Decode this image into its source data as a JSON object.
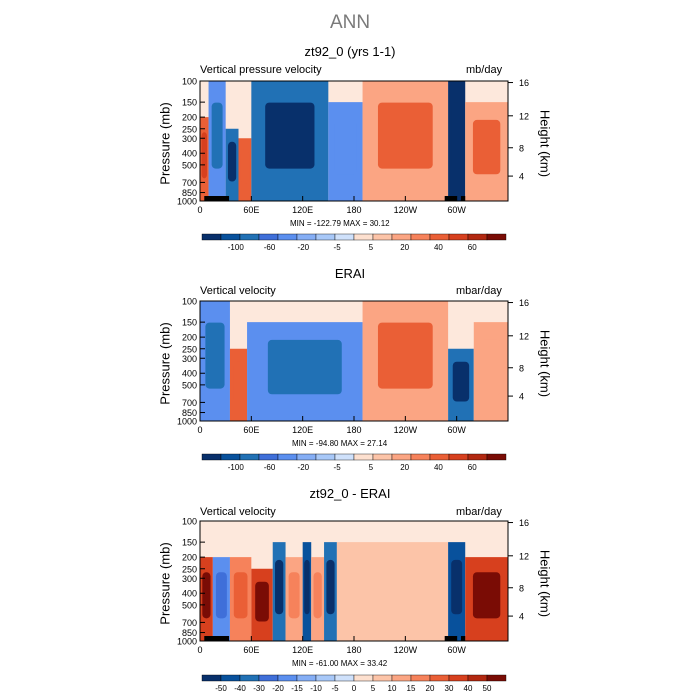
{
  "suptitle": "ANN",
  "colors": {
    "cool": [
      "#08306b",
      "#08519c",
      "#2171b5",
      "#3f6fd9",
      "#5b8fef",
      "#85aef5",
      "#a8c8f8",
      "#cfe1fb"
    ],
    "warm": [
      "#fde0cf",
      "#fcc4a8",
      "#fba583",
      "#f6825b",
      "#ea5f36",
      "#d7401e",
      "#b22810",
      "#7a0c05"
    ],
    "land": "#000000"
  },
  "y_ticks": [
    "100",
    "150",
    "200",
    "250",
    "300",
    "400",
    "500",
    "700",
    "850",
    "1000"
  ],
  "height_ticks": [
    "16",
    "12",
    "8",
    "4"
  ],
  "x_ticks": [
    "0",
    "60E",
    "120E",
    "180",
    "120W",
    "60W"
  ],
  "panels": [
    {
      "title": "zt92_0 (yrs 1-1)",
      "left_label": "Vertical pressure velocity",
      "units": "mb/day",
      "ylabel": "Pressure (mb)",
      "ylabel_right": "Height (km)",
      "stats": "MIN = -122.79   MAX = 30.12",
      "cb_labels": [
        "-100",
        "-60",
        "-20",
        "-5",
        "5",
        "20",
        "40",
        "60"
      ]
    },
    {
      "title": "ERAI",
      "left_label": "Vertical velocity",
      "units": "mbar/day",
      "ylabel": "Pressure (mb)",
      "ylabel_right": "Height (km)",
      "stats": "MIN = -94.80   MAX = 27.14",
      "cb_labels": [
        "-100",
        "-60",
        "-20",
        "-5",
        "5",
        "20",
        "40",
        "60"
      ]
    },
    {
      "title": "zt92_0 - ERAI",
      "left_label": "Vertical velocity",
      "units": "mbar/day",
      "ylabel": "Pressure (mb)",
      "ylabel_right": "Height (km)",
      "stats": "MIN = -61.00   MAX = 33.42",
      "cb_labels": [
        "-50",
        "-40",
        "-30",
        "-20",
        "-15",
        "-10",
        "-5",
        "0",
        "5",
        "10",
        "15",
        "20",
        "30",
        "40",
        "50"
      ]
    }
  ],
  "chart_data": [
    {
      "type": "heatmap",
      "title": "zt92_0 (yrs 1-1)",
      "xlabel": "",
      "ylabel": "Pressure (mb)",
      "x_ticks": [
        "0",
        "60E",
        "120E",
        "180",
        "120W",
        "60W"
      ],
      "y_ticks": [
        100,
        150,
        200,
        250,
        300,
        400,
        500,
        700,
        850,
        1000
      ],
      "colorbar": [
        -100,
        -60,
        -20,
        -5,
        5,
        20,
        40,
        60
      ],
      "min": -122.79,
      "max": 30.12,
      "regions": [
        {
          "lon0": 0,
          "lon1": 10,
          "p_top": 200,
          "value": 30
        },
        {
          "lon0": 10,
          "lon1": 30,
          "p_top": 100,
          "value": -40
        },
        {
          "lon0": 30,
          "lon1": 45,
          "p_top": 250,
          "value": -60
        },
        {
          "lon0": 45,
          "lon1": 60,
          "p_top": 300,
          "value": 20
        },
        {
          "lon0": 60,
          "lon1": 150,
          "p_top": 100,
          "value": -60
        },
        {
          "lon0": 150,
          "lon1": 190,
          "p_top": 150,
          "value": -20
        },
        {
          "lon0": 190,
          "lon1": 290,
          "p_top": 100,
          "value": 15
        },
        {
          "lon0": 290,
          "lon1": 310,
          "p_top": 100,
          "value": -100
        },
        {
          "lon0": 310,
          "lon1": 360,
          "p_top": 150,
          "value": 15
        }
      ]
    },
    {
      "type": "heatmap",
      "title": "ERAI",
      "xlabel": "",
      "ylabel": "Pressure (mb)",
      "x_ticks": [
        "0",
        "60E",
        "120E",
        "180",
        "120W",
        "60W"
      ],
      "y_ticks": [
        100,
        150,
        200,
        250,
        300,
        400,
        500,
        700,
        850,
        1000
      ],
      "colorbar": [
        -100,
        -60,
        -20,
        -5,
        5,
        20,
        40,
        60
      ],
      "min": -94.8,
      "max": 27.14,
      "regions": [
        {
          "lon0": 0,
          "lon1": 35,
          "p_top": 100,
          "value": -40
        },
        {
          "lon0": 35,
          "lon1": 55,
          "p_top": 250,
          "value": 20
        },
        {
          "lon0": 55,
          "lon1": 190,
          "p_top": 150,
          "value": -50
        },
        {
          "lon0": 190,
          "lon1": 290,
          "p_top": 100,
          "value": 15
        },
        {
          "lon0": 290,
          "lon1": 320,
          "p_top": 250,
          "value": -60
        },
        {
          "lon0": 320,
          "lon1": 360,
          "p_top": 150,
          "value": 10
        }
      ]
    },
    {
      "type": "heatmap",
      "title": "zt92_0 - ERAI",
      "xlabel": "",
      "ylabel": "Pressure (mb)",
      "x_ticks": [
        "0",
        "60E",
        "120E",
        "180",
        "120W",
        "60W"
      ],
      "y_ticks": [
        100,
        150,
        200,
        250,
        300,
        400,
        500,
        700,
        850,
        1000
      ],
      "colorbar": [
        -50,
        -40,
        -30,
        -20,
        -15,
        -10,
        -5,
        0,
        5,
        10,
        15,
        20,
        30,
        40,
        50
      ],
      "min": -61.0,
      "max": 33.42,
      "regions": [
        {
          "lon0": 0,
          "lon1": 15,
          "p_top": 200,
          "value": 30
        },
        {
          "lon0": 15,
          "lon1": 35,
          "p_top": 200,
          "value": -15
        },
        {
          "lon0": 35,
          "lon1": 60,
          "p_top": 200,
          "value": 15
        },
        {
          "lon0": 60,
          "lon1": 85,
          "p_top": 250,
          "value": 30
        },
        {
          "lon0": 85,
          "lon1": 100,
          "p_top": 150,
          "value": -30
        },
        {
          "lon0": 100,
          "lon1": 120,
          "p_top": 200,
          "value": 10
        },
        {
          "lon0": 120,
          "lon1": 130,
          "p_top": 150,
          "value": -40
        },
        {
          "lon0": 130,
          "lon1": 145,
          "p_top": 200,
          "value": 10
        },
        {
          "lon0": 145,
          "lon1": 160,
          "p_top": 150,
          "value": -30
        },
        {
          "lon0": 160,
          "lon1": 290,
          "p_top": 150,
          "value": 5
        },
        {
          "lon0": 290,
          "lon1": 310,
          "p_top": 150,
          "value": -40
        },
        {
          "lon0": 310,
          "lon1": 360,
          "p_top": 200,
          "value": 30
        }
      ]
    }
  ]
}
